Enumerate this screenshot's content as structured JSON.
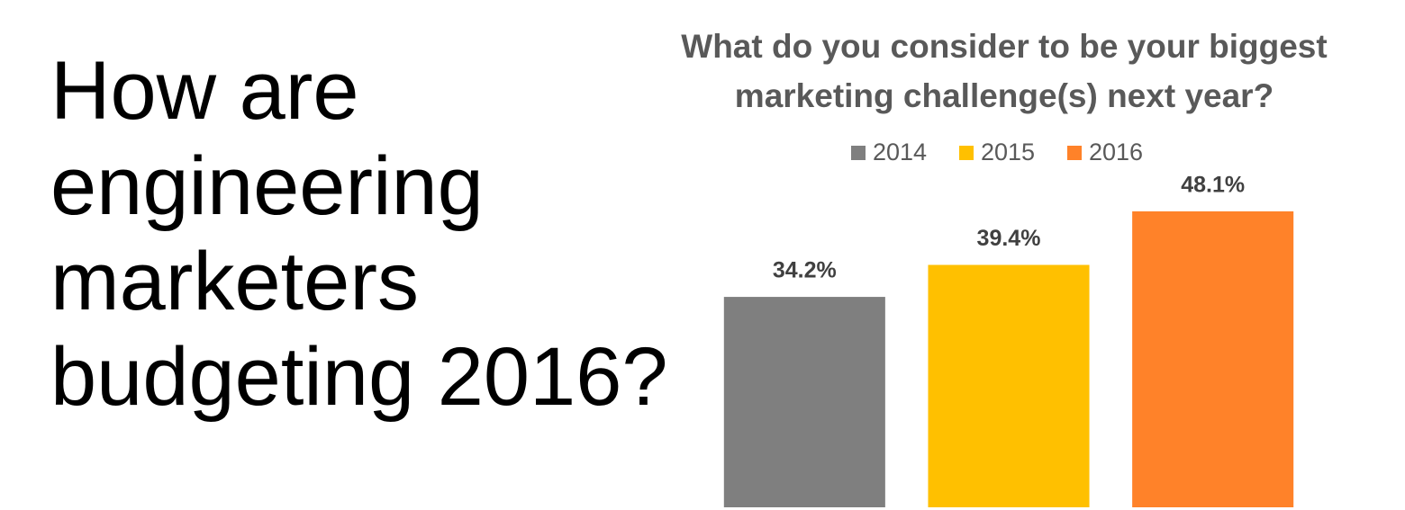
{
  "heading": [
    "How are",
    "engineering",
    "marketers",
    "budgeting 2016?"
  ],
  "chart_data": {
    "type": "bar",
    "title": "What do you consider to be your biggest marketing challenge(s) next year?",
    "categories": [
      null
    ],
    "series": [
      {
        "name": "2014",
        "color": "#7f7f7f",
        "values": [
          34.2
        ],
        "value_labels": [
          "34.2%"
        ]
      },
      {
        "name": "2015",
        "color": "#ffc000",
        "values": [
          39.4
        ],
        "value_labels": [
          "39.4%"
        ]
      },
      {
        "name": "2016",
        "color": "#ff8229",
        "values": [
          48.1
        ],
        "value_labels": [
          "48.1%"
        ]
      }
    ],
    "ylim": [
      0,
      50
    ],
    "legend": "top"
  }
}
